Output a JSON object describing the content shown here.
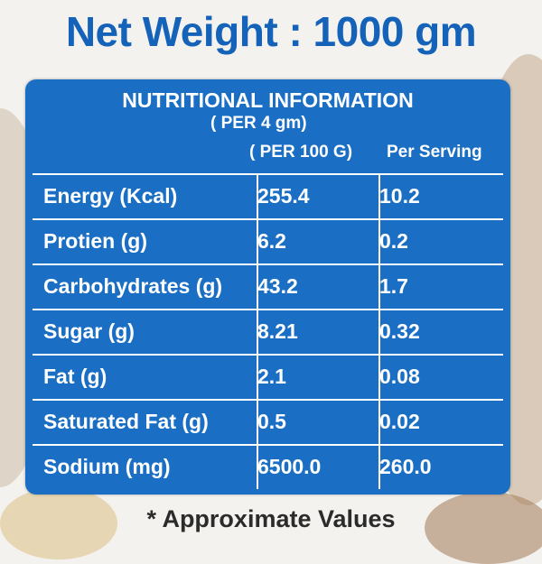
{
  "header": {
    "title": "Net Weight : 1000 gm"
  },
  "panel": {
    "heading": "NUTRITIONAL INFORMATION",
    "subheading": "( PER 4 gm)"
  },
  "table": {
    "columns": [
      "( PER 100 G)",
      "Per Serving"
    ],
    "rows": [
      [
        "Energy (Kcal)",
        "255.4",
        "10.2"
      ],
      [
        "Protien (g)",
        "6.2",
        "0.2"
      ],
      [
        "Carbohydrates (g)",
        "43.2",
        "1.7"
      ],
      [
        "Sugar (g)",
        "8.21",
        "0.32"
      ],
      [
        "Fat (g)",
        "2.1",
        "0.08"
      ],
      [
        "Saturated Fat (g)",
        "0.5",
        "0.02"
      ],
      [
        "Sodium (mg)",
        "6500.0",
        "260.0"
      ]
    ]
  },
  "footer": {
    "note": "* Approximate Values"
  }
}
